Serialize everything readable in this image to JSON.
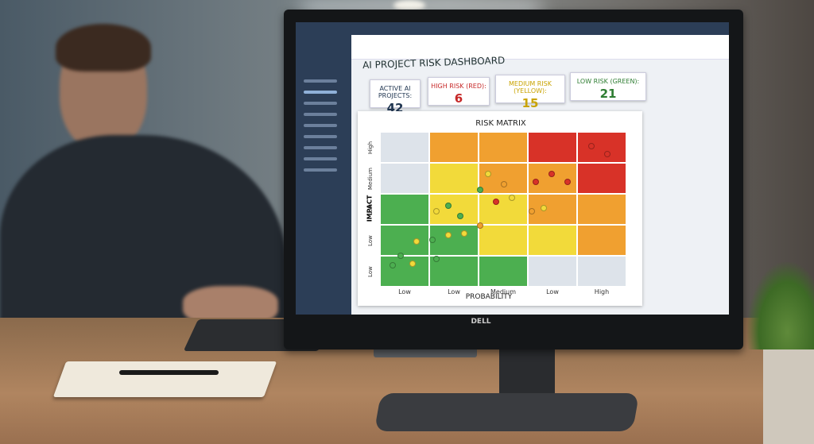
{
  "header": {
    "title": "AI PROJECT RISK DASHBOARD"
  },
  "cards": [
    {
      "label": "ACTIVE AI PROJECTS:",
      "value": "42"
    },
    {
      "label": "HIGH RISK (RED):",
      "value": "6"
    },
    {
      "label": "MEDIUM RISK (YELLOW):",
      "value": "15"
    },
    {
      "label": "LOW RISK (GREEN):",
      "value": "21"
    }
  ],
  "matrix": {
    "title": "RISK MATRIX",
    "y_label": "IMPACT",
    "x_label": "PROBABILITY",
    "y_ticks": [
      "High",
      "Medium",
      "Low",
      "Low",
      "Low"
    ],
    "x_ticks": [
      "Low",
      "Low",
      "Medium",
      "Low",
      "High"
    ]
  },
  "monitor": {
    "brand": "DELL"
  }
}
